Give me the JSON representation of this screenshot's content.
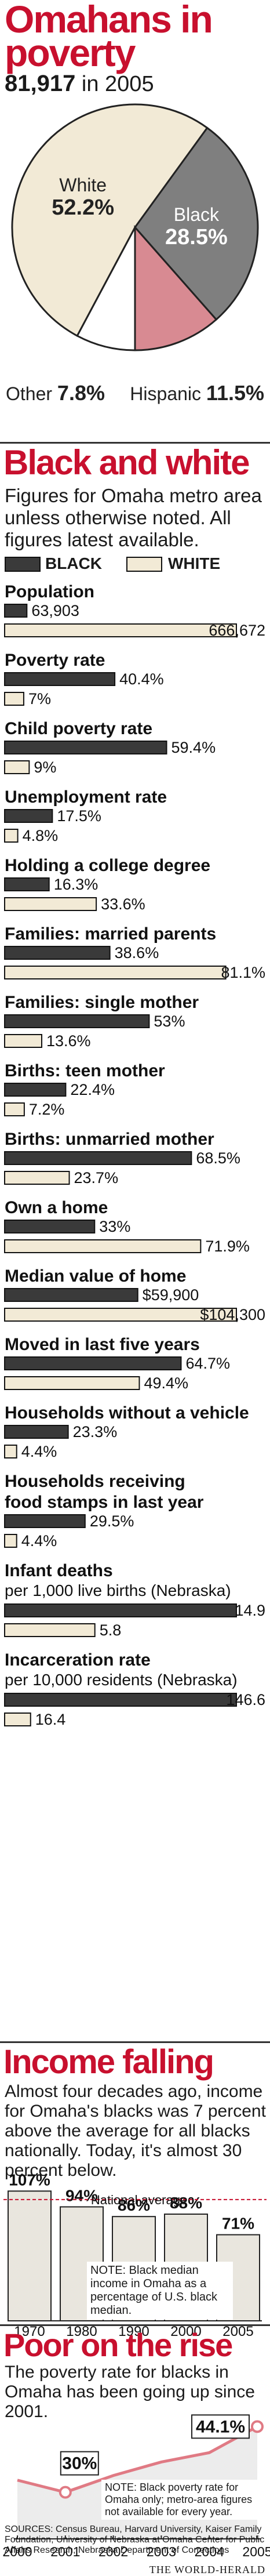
{
  "poverty_section": {
    "title": "Omahans in poverty",
    "total_value": "81,917",
    "total_suffix": "in 2005"
  },
  "bw_section": {
    "title": "Black and white",
    "intro": "Figures for Omaha metro area unless otherwise noted. All figures latest available.",
    "legend_black": "BLACK",
    "legend_white": "WHITE"
  },
  "income_section": {
    "title": "Income falling",
    "intro": "Almost four decades ago, income for Omaha's blacks was 7 percent above the average for all blacks nationally. Today, it's almost 30 percent below.",
    "national_avg_label": "National average",
    "note": "NOTE: Black median income in Omaha as a percentage of U.S. black median."
  },
  "rise_section": {
    "title": "Poor on the rise",
    "intro": "The poverty rate for blacks in Omaha has been going up since 2001.",
    "note": "NOTE: Black poverty rate for Omaha only; metro-area figures not available for every year."
  },
  "footer": {
    "sources": "SOURCES: Census Bureau, Harvard University, Kaiser Family Foundation, University of Nebraska at Omaha Center for Public Affairs Research, Nebraska Department of Corrections",
    "credit": "THE WORLD-HERALD"
  },
  "colors": {
    "headline_red": "#c8102e",
    "black_bar": "#3a3a3a",
    "white_bar": "#f2ead6",
    "pie_white": "#f2ead6",
    "pie_black": "#7f7f7f",
    "pie_hispanic": "#d88a92",
    "pie_other": "#ffffff",
    "income_bar": "#e9e6de",
    "line_red": "#e07a84"
  },
  "chart_data": [
    {
      "type": "pie",
      "labels": [
        "White",
        "Black",
        "Hispanic",
        "Other"
      ],
      "values": [
        52.2,
        28.5,
        11.5,
        7.8
      ],
      "value_labels": [
        "52.2%",
        "28.5%",
        "11.5%",
        "7.8%"
      ]
    },
    {
      "type": "bar",
      "orientation": "horizontal",
      "series_names": [
        "BLACK",
        "WHITE"
      ],
      "groups": [
        {
          "label": "Population",
          "sublabel": "",
          "black": 63903,
          "white": 666672,
          "black_label": "63,903",
          "white_label": "666,672"
        },
        {
          "label": "Poverty rate",
          "sublabel": "",
          "black": 40.4,
          "white": 7,
          "black_label": "40.4%",
          "white_label": "7%"
        },
        {
          "label": "Child poverty rate",
          "sublabel": "",
          "black": 59.4,
          "white": 9,
          "black_label": "59.4%",
          "white_label": "9%"
        },
        {
          "label": "Unemployment rate",
          "sublabel": "",
          "black": 17.5,
          "white": 4.8,
          "black_label": "17.5%",
          "white_label": "4.8%"
        },
        {
          "label": "Holding a college degree",
          "sublabel": "",
          "black": 16.3,
          "white": 33.6,
          "black_label": "16.3%",
          "white_label": "33.6%"
        },
        {
          "label": "Families: married parents",
          "sublabel": "",
          "black": 38.6,
          "white": 81.1,
          "black_label": "38.6%",
          "white_label": "81.1%"
        },
        {
          "label": "Families: single mother",
          "sublabel": "",
          "black": 53,
          "white": 13.6,
          "black_label": "53%",
          "white_label": "13.6%"
        },
        {
          "label": "Births: teen mother",
          "sublabel": "",
          "black": 22.4,
          "white": 7.2,
          "black_label": "22.4%",
          "white_label": "7.2%"
        },
        {
          "label": "Births: unmarried mother",
          "sublabel": "",
          "black": 68.5,
          "white": 23.7,
          "black_label": "68.5%",
          "white_label": "23.7%"
        },
        {
          "label": "Own a home",
          "sublabel": "",
          "black": 33,
          "white": 71.9,
          "black_label": "33%",
          "white_label": "71.9%"
        },
        {
          "label": "Median value of home",
          "sublabel": "",
          "black": 59900,
          "white": 104300,
          "black_label": "$59,900",
          "white_label": "$104,300"
        },
        {
          "label": "Moved in last five years",
          "sublabel": "",
          "black": 64.7,
          "white": 49.4,
          "black_label": "64.7%",
          "white_label": "49.4%"
        },
        {
          "label": "Households without a vehicle",
          "sublabel": "",
          "black": 23.3,
          "white": 4.4,
          "black_label": "23.3%",
          "white_label": "4.4%"
        },
        {
          "label": "Households receiving food stamps in last year",
          "sublabel": "",
          "black": 29.5,
          "white": 4.4,
          "black_label": "29.5%",
          "white_label": "4.4%"
        },
        {
          "label": "Infant deaths",
          "sublabel": "per 1,000 live births (Nebraska)",
          "black": 14.9,
          "white": 5.8,
          "black_label": "14.9",
          "white_label": "5.8"
        },
        {
          "label": "Incarceration rate",
          "sublabel": "per 10,000 residents (Nebraska)",
          "black": 146.6,
          "white": 16.4,
          "black_label": "146.6",
          "white_label": "16.4"
        }
      ]
    },
    {
      "type": "bar",
      "categories": [
        "1970",
        "1980",
        "1990",
        "2000",
        "2005"
      ],
      "values": [
        107,
        94,
        86,
        88,
        71
      ],
      "value_labels": [
        "107%",
        "94%",
        "86%",
        "88%",
        "71%"
      ],
      "reference_line": 100
    },
    {
      "type": "line",
      "x": [
        "2000",
        "2001",
        "2002",
        "2003",
        "2004",
        "2005"
      ],
      "values": [
        32.6,
        30.0,
        33.6,
        36.5,
        38.5,
        44.1
      ],
      "annotations": [
        {
          "x": "2001",
          "label": "30%"
        },
        {
          "x": "2005",
          "label": "44.1%"
        }
      ]
    }
  ]
}
